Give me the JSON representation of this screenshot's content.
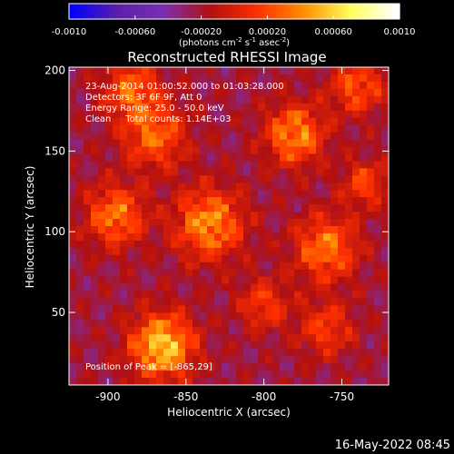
{
  "chart_data": {
    "type": "heatmap",
    "title": "Reconstructed RHESSI Image",
    "xlabel": "Heliocentric X (arcsec)",
    "ylabel": "Heliocentric Y (arcsec)",
    "xlim": [
      -925,
      -720
    ],
    "ylim": [
      5,
      202
    ],
    "x_ticks": [
      -900,
      -850,
      -800,
      -750
    ],
    "y_ticks": [
      50,
      100,
      150,
      200
    ],
    "colorbar": {
      "range": [
        -0.001,
        0.001
      ],
      "ticks": [
        "-0.0010",
        "-0.00060",
        "-0.00020",
        "0.00020",
        "0.00060",
        "0.0010"
      ],
      "tick_values": [
        -0.001,
        -0.0006,
        -0.0002,
        0.0002,
        0.0006,
        0.001
      ],
      "label": "(photons cm",
      "label_sup1": "-2",
      "label_mid": " s",
      "label_sup2": "-1",
      "label_end": " asec",
      "label_sup3": "-2",
      "label_close": ")"
    },
    "annotations": {
      "line1": "23-Aug-2014 01:00:52.000 to 01:03:28.000",
      "line2": "Detectors: 3F 6F 9F, Att 0",
      "line3": "Energy Range: 25.0 - 50.0 keV",
      "line4": "Clean     Total counts: 1.14E+03",
      "peak": "Position of Peak = [-865,29]"
    },
    "grid": false,
    "colors": [
      "#0000ff",
      "#5a1fa8",
      "#7a2fb0",
      "#b01010",
      "#ff3000",
      "#ff9000",
      "#ffff60",
      "#ffffff"
    ],
    "sources": [
      {
        "x": -865,
        "y": 29,
        "amp": 0.001,
        "sigma": 14
      },
      {
        "x": -835,
        "y": 105,
        "amp": 0.00078,
        "sigma": 15
      },
      {
        "x": -780,
        "y": 160,
        "amp": 0.00075,
        "sigma": 13
      },
      {
        "x": -760,
        "y": 90,
        "amp": 0.00068,
        "sigma": 14
      },
      {
        "x": -895,
        "y": 110,
        "amp": 0.00068,
        "sigma": 13
      },
      {
        "x": -870,
        "y": 160,
        "amp": 0.00062,
        "sigma": 14
      },
      {
        "x": -885,
        "y": 188,
        "amp": 0.0006,
        "sigma": 12
      },
      {
        "x": -740,
        "y": 190,
        "amp": 0.00055,
        "sigma": 12
      },
      {
        "x": -800,
        "y": 55,
        "amp": 0.00045,
        "sigma": 11
      },
      {
        "x": -760,
        "y": 40,
        "amp": 0.00045,
        "sigma": 12
      },
      {
        "x": -735,
        "y": 130,
        "amp": 0.00048,
        "sigma": 10
      }
    ]
  },
  "footer": {
    "date": "16-May-2022 08:45"
  }
}
